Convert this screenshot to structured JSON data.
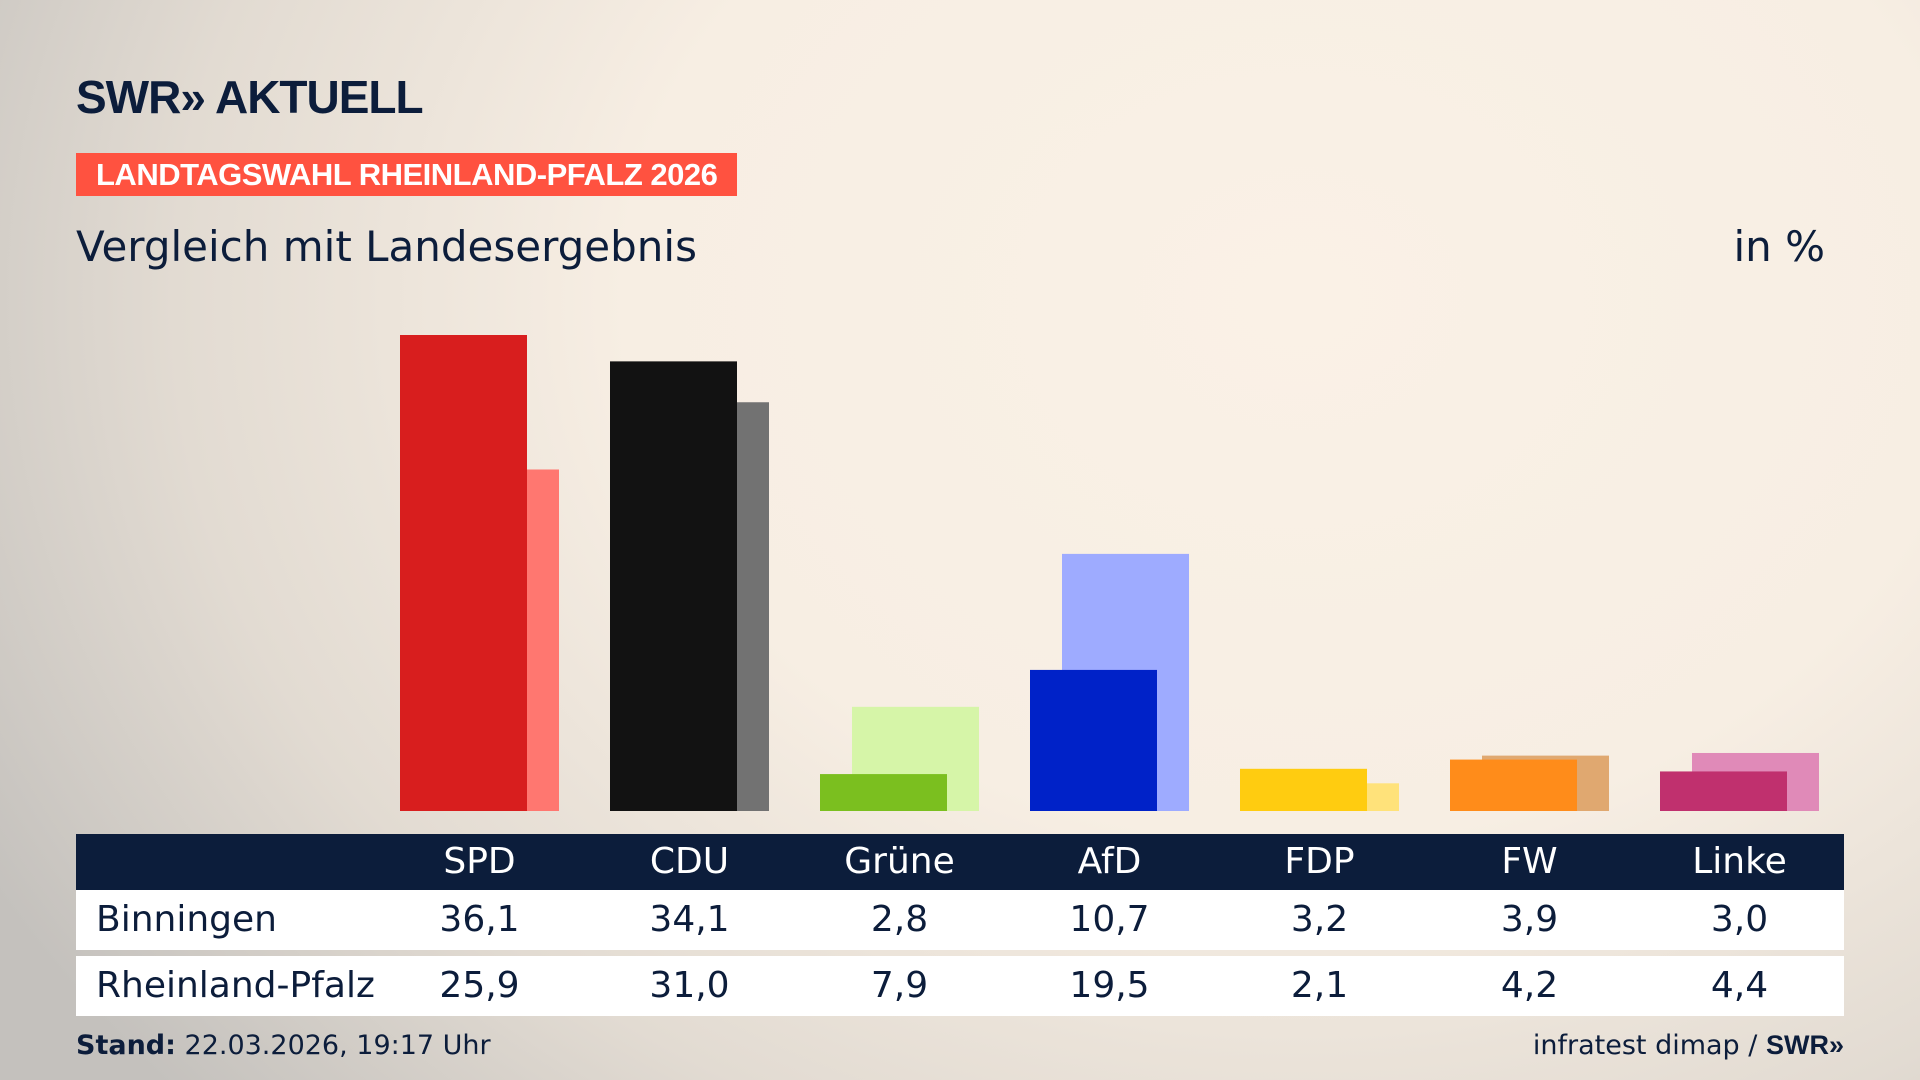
{
  "brand": {
    "logo": "SWR» AKTUELL",
    "footer_logo": "SWR»"
  },
  "banner": "LANDTAGSWAHL RHEINLAND-PFALZ 2026",
  "subtitle": "Vergleich mit Landesergebnis",
  "unit": "in %",
  "footer": {
    "stand_label": "Stand:",
    "stand_value": "22.03.2026, 19:17 Uhr",
    "source": "infratest dimap /"
  },
  "chart_data": {
    "type": "bar",
    "categories": [
      "SPD",
      "CDU",
      "Grüne",
      "AfD",
      "FDP",
      "FW",
      "Linke"
    ],
    "series": [
      {
        "name": "Binningen",
        "values": [
          36.1,
          34.1,
          2.8,
          10.7,
          3.2,
          3.9,
          3.0
        ],
        "display": [
          "36,1",
          "34,1",
          "2,8",
          "10,7",
          "3,2",
          "3,9",
          "3,0"
        ],
        "colors": [
          "#d81e1e",
          "#121212",
          "#7bbf1f",
          "#0022c8",
          "#ffcc10",
          "#ff8c1a",
          "#c0306e"
        ]
      },
      {
        "name": "Rheinland-Pfalz",
        "values": [
          25.9,
          31.0,
          7.9,
          19.5,
          2.1,
          4.2,
          4.4
        ],
        "display": [
          "25,9",
          "31,0",
          "7,9",
          "19,5",
          "2,1",
          "4,2",
          "4,4"
        ],
        "colors": [
          "#ff7770",
          "#727272",
          "#d6f5a8",
          "#9eabff",
          "#ffe27a",
          "#e0a870",
          "#e08ab8"
        ]
      }
    ],
    "ylim": [
      0,
      40
    ],
    "grid": false,
    "legend": "table-below"
  }
}
